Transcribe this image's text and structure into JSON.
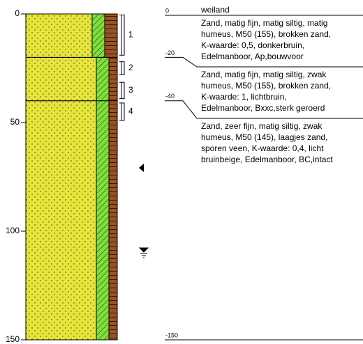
{
  "depth_axis": {
    "range": [
      0,
      150
    ],
    "ticks": [
      0,
      50,
      100,
      150
    ]
  },
  "surface": "weiland",
  "layers": [
    {
      "top_label": "0",
      "top": 0,
      "bottom": 20,
      "description": [
        "Zand, matig fijn, matig siltig, matig",
        "humeus, M50 (155), brokken zand,",
        "K-waarde: 0,5, donkerbruin,",
        "Edelmanboor, Ap,bouwvoor"
      ]
    },
    {
      "top_label": "-20",
      "top": 20,
      "bottom": 40,
      "description": [
        "Zand, matig fijn, matig siltig, zwak",
        "humeus, M50 (155), brokken zand,",
        "K-waarde: 1, lichtbruin,",
        "Edelmanboor, Bxxc,sterk geroerd"
      ]
    },
    {
      "top_label": "-40",
      "top": 40,
      "bottom": 150,
      "description": [
        "Zand, zeer fijn, matig siltig, zwak",
        "humeus, M50 (145), laagjes zand,",
        "sporen veen, K-waarde: 0,4, licht",
        "bruinbeige, Edelmanboor, BC,intact"
      ]
    }
  ],
  "bottom_label": "-150",
  "samples": [
    {
      "label": "1",
      "top": 0.5,
      "bottom": 19
    },
    {
      "label": "2",
      "top": 22,
      "bottom": 28
    },
    {
      "label": "3",
      "top": 31.5,
      "bottom": 39
    },
    {
      "label": "4",
      "top": 41,
      "bottom": 49
    }
  ]
}
